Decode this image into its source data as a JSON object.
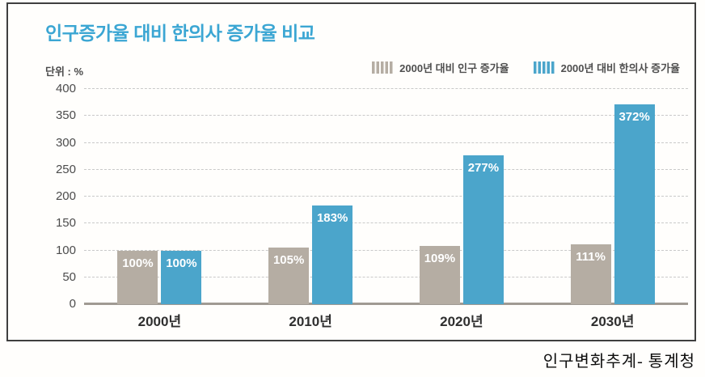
{
  "panel": {
    "title": "인구증가율 대비 한의사 증가율 비교",
    "unit_label": "단위 : %",
    "title_color": "#3ba6d3"
  },
  "legend": {
    "items": [
      {
        "label": "2000년 대비 인구 증가율",
        "color": "#b5ada3"
      },
      {
        "label": "2000년 대비 한의사 증가율",
        "color": "#4ba5cb"
      }
    ]
  },
  "source_caption": "인구변화추계- 통계청",
  "chart_data": {
    "type": "bar",
    "title": "인구증가율 대비 한의사 증가율 비교",
    "unit": "단위 : %",
    "categories": [
      "2000년",
      "2010년",
      "2020년",
      "2030년"
    ],
    "series": [
      {
        "name": "2000년 대비 인구 증가율",
        "color": "#b5ada3",
        "values": [
          100,
          105,
          109,
          111
        ],
        "labels": [
          "100%",
          "105%",
          "109%",
          "111%"
        ]
      },
      {
        "name": "2000년 대비 한의사 증가율",
        "color": "#4ba5cb",
        "values": [
          100,
          183,
          277,
          372
        ],
        "labels": [
          "100%",
          "183%",
          "277%",
          "372%"
        ]
      }
    ],
    "ylim": [
      0,
      400
    ],
    "ytick_step": 50,
    "yticks": [
      0,
      50,
      100,
      150,
      200,
      250,
      300,
      350,
      400
    ],
    "grid": "horizontal-dashed",
    "legend_position": "top-right",
    "value_labels": "inside-top-white"
  }
}
